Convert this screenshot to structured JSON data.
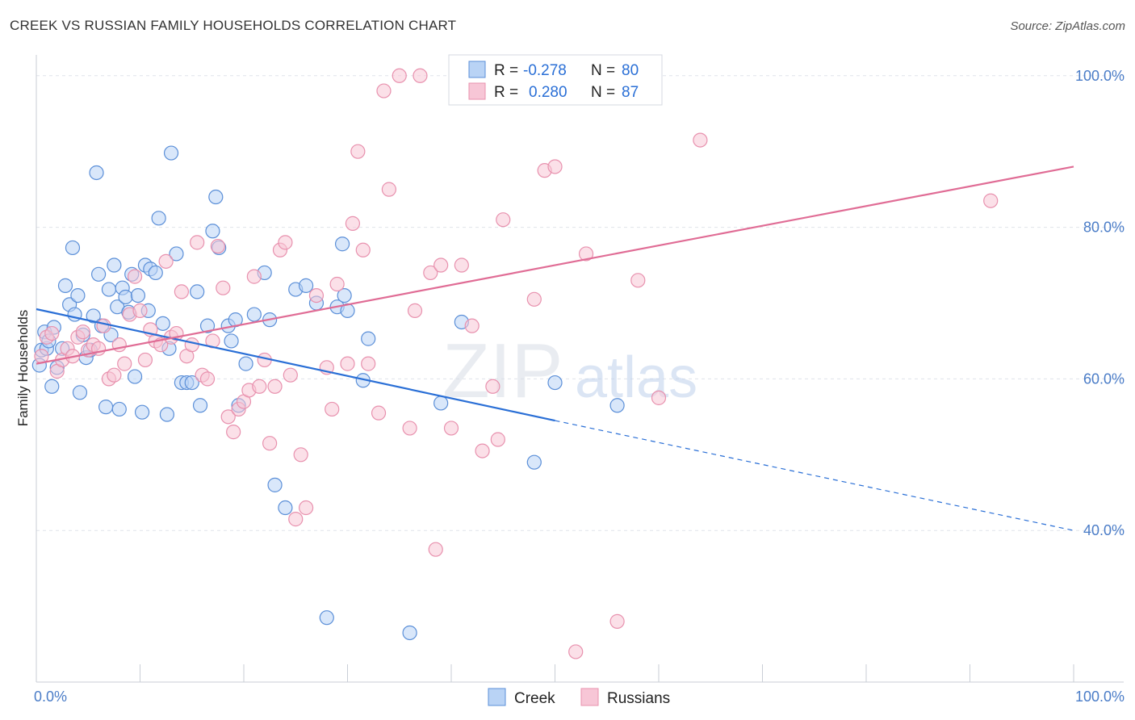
{
  "title": "CREEK VS RUSSIAN FAMILY HOUSEHOLDS CORRELATION CHART",
  "source": "Source: ZipAtlas.com",
  "watermark": {
    "zip": "ZIP",
    "atlas": "atlas"
  },
  "colors": {
    "creek_fill": "#b9d3f5",
    "creek_stroke": "#5b8fd8",
    "creek_line": "#2a6fd6",
    "russians_fill": "#f7c6d6",
    "russians_stroke": "#e891ae",
    "russians_line": "#e06c95",
    "tick_text": "#4a7cc7",
    "grid": "#dfe3ea"
  },
  "legend": {
    "rows": [
      {
        "r_label": "R =",
        "r_value": "-0.278",
        "n_label": "N =",
        "n_value": "80"
      },
      {
        "r_label": "R =",
        "r_value": "0.280",
        "n_label": "N =",
        "n_value": "87"
      }
    ]
  },
  "chart_data": {
    "type": "scatter",
    "title": "CREEK VS RUSSIAN FAMILY HOUSEHOLDS CORRELATION CHART",
    "xlabel": "",
    "ylabel": "Family Households",
    "xlim": [
      0,
      100
    ],
    "ylim": [
      20,
      102
    ],
    "x_tick_labels": [
      "0.0%",
      "100.0%"
    ],
    "y_ticks": [
      40,
      60,
      80,
      100
    ],
    "y_tick_labels": [
      "40.0%",
      "60.0%",
      "80.0%",
      "100.0%"
    ],
    "grid": true,
    "legend_position": "top-center",
    "series": [
      {
        "name": "Creek",
        "stats": {
          "R": -0.278,
          "N": 80
        },
        "trend": {
          "x0": 0,
          "y0": 69.2,
          "x1": 50,
          "y1": 54.5,
          "dashed_to_x": 100,
          "dashed_to_y": 40.0
        },
        "points": [
          [
            0.3,
            61.8
          ],
          [
            0.5,
            63.8
          ],
          [
            0.8,
            66.2
          ],
          [
            1.0,
            64.0
          ],
          [
            1.2,
            65.0
          ],
          [
            1.5,
            59.0
          ],
          [
            1.7,
            66.8
          ],
          [
            2.0,
            61.5
          ],
          [
            2.5,
            64.0
          ],
          [
            2.8,
            72.3
          ],
          [
            3.2,
            69.8
          ],
          [
            3.5,
            77.3
          ],
          [
            3.7,
            68.5
          ],
          [
            4.0,
            71.0
          ],
          [
            4.2,
            58.2
          ],
          [
            4.5,
            65.8
          ],
          [
            4.8,
            62.8
          ],
          [
            5.2,
            63.8
          ],
          [
            5.5,
            68.3
          ],
          [
            5.8,
            87.2
          ],
          [
            6.0,
            73.8
          ],
          [
            6.3,
            67.0
          ],
          [
            6.7,
            56.3
          ],
          [
            7.0,
            71.8
          ],
          [
            7.2,
            65.8
          ],
          [
            7.5,
            75.0
          ],
          [
            7.8,
            69.5
          ],
          [
            8.0,
            56.0
          ],
          [
            8.3,
            72.0
          ],
          [
            8.6,
            70.8
          ],
          [
            8.9,
            68.8
          ],
          [
            9.2,
            73.8
          ],
          [
            9.5,
            60.3
          ],
          [
            9.8,
            71.0
          ],
          [
            10.2,
            55.6
          ],
          [
            10.5,
            75.0
          ],
          [
            10.8,
            69.0
          ],
          [
            11.0,
            74.5
          ],
          [
            11.5,
            74.0
          ],
          [
            11.8,
            81.2
          ],
          [
            12.2,
            67.3
          ],
          [
            12.6,
            55.3
          ],
          [
            12.8,
            64.0
          ],
          [
            13.0,
            89.8
          ],
          [
            13.5,
            76.5
          ],
          [
            14.0,
            59.5
          ],
          [
            14.5,
            59.5
          ],
          [
            15.0,
            59.5
          ],
          [
            15.5,
            71.5
          ],
          [
            15.8,
            56.5
          ],
          [
            16.5,
            67.0
          ],
          [
            17.0,
            79.5
          ],
          [
            17.3,
            84.0
          ],
          [
            17.6,
            77.3
          ],
          [
            18.5,
            67.0
          ],
          [
            18.8,
            65.0
          ],
          [
            19.2,
            67.8
          ],
          [
            19.5,
            56.5
          ],
          [
            20.2,
            62.0
          ],
          [
            21.0,
            68.5
          ],
          [
            22.0,
            74.0
          ],
          [
            22.5,
            67.8
          ],
          [
            23.0,
            46.0
          ],
          [
            24.0,
            43.0
          ],
          [
            25.0,
            71.8
          ],
          [
            26.0,
            72.3
          ],
          [
            27.0,
            70.0
          ],
          [
            28.0,
            28.5
          ],
          [
            29.0,
            69.5
          ],
          [
            29.5,
            77.8
          ],
          [
            29.7,
            71.0
          ],
          [
            30.0,
            69.0
          ],
          [
            31.5,
            59.8
          ],
          [
            32.0,
            65.3
          ],
          [
            36.0,
            26.5
          ],
          [
            39.0,
            56.8
          ],
          [
            41.0,
            67.5
          ],
          [
            48.0,
            49.0
          ],
          [
            50.0,
            59.5
          ],
          [
            56.0,
            56.5
          ]
        ]
      },
      {
        "name": "Russians",
        "stats": {
          "R": 0.28,
          "N": 87
        },
        "trend": {
          "x0": 0,
          "y0": 62.0,
          "x1": 100,
          "y1": 88.0
        },
        "points": [
          [
            0.5,
            63.0
          ],
          [
            1.0,
            65.5
          ],
          [
            1.5,
            66.0
          ],
          [
            2.0,
            61.0
          ],
          [
            2.5,
            62.5
          ],
          [
            3.0,
            64.0
          ],
          [
            3.5,
            63.0
          ],
          [
            4.0,
            65.5
          ],
          [
            4.5,
            66.2
          ],
          [
            5.0,
            63.8
          ],
          [
            5.5,
            64.5
          ],
          [
            6.0,
            64.0
          ],
          [
            6.5,
            67.0
          ],
          [
            7.0,
            60.0
          ],
          [
            7.5,
            60.5
          ],
          [
            8.0,
            64.5
          ],
          [
            8.5,
            62.0
          ],
          [
            9.0,
            68.5
          ],
          [
            9.5,
            73.5
          ],
          [
            10.0,
            69.0
          ],
          [
            10.5,
            62.5
          ],
          [
            11.0,
            66.5
          ],
          [
            11.5,
            65.0
          ],
          [
            12.0,
            64.5
          ],
          [
            12.5,
            75.5
          ],
          [
            13.0,
            65.5
          ],
          [
            13.5,
            66.0
          ],
          [
            14.0,
            71.5
          ],
          [
            14.5,
            63.0
          ],
          [
            15.0,
            64.5
          ],
          [
            15.5,
            78.0
          ],
          [
            16.0,
            60.5
          ],
          [
            16.5,
            60.0
          ],
          [
            17.0,
            65.0
          ],
          [
            17.5,
            77.5
          ],
          [
            18.0,
            72.0
          ],
          [
            18.5,
            55.0
          ],
          [
            19.0,
            53.0
          ],
          [
            19.5,
            56.0
          ],
          [
            20.0,
            57.0
          ],
          [
            20.5,
            58.5
          ],
          [
            21.0,
            73.5
          ],
          [
            21.5,
            59.0
          ],
          [
            22.0,
            62.5
          ],
          [
            22.5,
            51.5
          ],
          [
            23.0,
            59.0
          ],
          [
            23.5,
            77.0
          ],
          [
            24.0,
            78.0
          ],
          [
            24.5,
            60.5
          ],
          [
            25.0,
            41.5
          ],
          [
            25.5,
            50.0
          ],
          [
            26.0,
            43.0
          ],
          [
            27.0,
            71.0
          ],
          [
            28.0,
            61.5
          ],
          [
            28.5,
            56.0
          ],
          [
            29.0,
            72.5
          ],
          [
            30.0,
            62.0
          ],
          [
            30.5,
            80.5
          ],
          [
            31.0,
            90.0
          ],
          [
            31.5,
            77.0
          ],
          [
            32.0,
            62.0
          ],
          [
            33.0,
            55.5
          ],
          [
            33.5,
            98.0
          ],
          [
            34.0,
            85.0
          ],
          [
            35.0,
            100.0
          ],
          [
            36.0,
            53.5
          ],
          [
            36.5,
            69.0
          ],
          [
            37.0,
            100.0
          ],
          [
            38.0,
            74.0
          ],
          [
            38.5,
            37.5
          ],
          [
            39.0,
            75.0
          ],
          [
            40.0,
            53.5
          ],
          [
            41.0,
            75.0
          ],
          [
            42.0,
            67.0
          ],
          [
            43.0,
            50.5
          ],
          [
            44.0,
            59.0
          ],
          [
            44.5,
            52.0
          ],
          [
            45.0,
            81.0
          ],
          [
            47.0,
            100.0
          ],
          [
            48.0,
            70.5
          ],
          [
            49.0,
            87.5
          ],
          [
            50.0,
            88.0
          ],
          [
            52.0,
            24.0
          ],
          [
            53.0,
            76.5
          ],
          [
            56.0,
            28.0
          ],
          [
            58.0,
            73.0
          ],
          [
            60.0,
            57.5
          ]
        ],
        "extra_points": [
          [
            64.0,
            91.5
          ],
          [
            92.0,
            83.5
          ]
        ]
      }
    ]
  }
}
